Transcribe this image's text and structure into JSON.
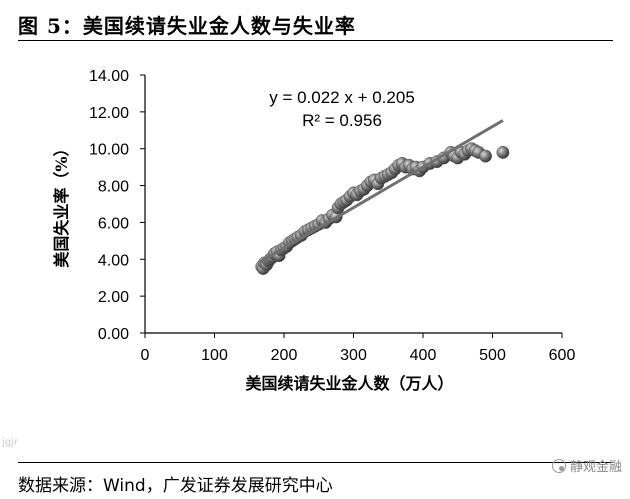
{
  "header": {
    "title": "图 5：美国续请失业金人数与失业率"
  },
  "footer": {
    "source": "数据来源：Wind，广发证券发展研究中心"
  },
  "watermark": {
    "text": "静观金融",
    "icon": "wechat-icon",
    "left_text": "jgjr"
  },
  "chart_data": {
    "type": "scatter",
    "title": "",
    "xlabel": "美国续请失业金人数（万人）",
    "ylabel": "美国失业率（%）",
    "xlim": [
      0,
      600
    ],
    "ylim": [
      0,
      14
    ],
    "x_ticks": [
      "0",
      "100",
      "200",
      "300",
      "400",
      "500",
      "600"
    ],
    "y_ticks": [
      "0.00",
      "2.00",
      "4.00",
      "6.00",
      "8.00",
      "10.00",
      "12.00",
      "14.00"
    ],
    "grid": false,
    "legend": "none",
    "trendline": {
      "slope": 0.022,
      "intercept": 0.205,
      "x_range": [
        165,
        515
      ]
    },
    "annotations": [
      "y = 0.022 x + 0.205",
      "R² = 0.956"
    ],
    "point_color": "#777777",
    "trend_color": "#707070",
    "series": [
      {
        "points": [
          [
            168,
            3.6
          ],
          [
            170,
            3.5
          ],
          [
            172,
            3.8
          ],
          [
            175,
            3.7
          ],
          [
            178,
            3.9
          ],
          [
            180,
            4.0
          ],
          [
            183,
            4.1
          ],
          [
            186,
            4.3
          ],
          [
            190,
            4.4
          ],
          [
            193,
            4.2
          ],
          [
            196,
            4.5
          ],
          [
            200,
            4.6
          ],
          [
            204,
            4.7
          ],
          [
            208,
            4.9
          ],
          [
            212,
            5.0
          ],
          [
            216,
            5.1
          ],
          [
            220,
            5.2
          ],
          [
            225,
            5.3
          ],
          [
            230,
            5.5
          ],
          [
            235,
            5.6
          ],
          [
            240,
            5.7
          ],
          [
            245,
            5.8
          ],
          [
            250,
            5.9
          ],
          [
            255,
            6.1
          ],
          [
            260,
            6.0
          ],
          [
            265,
            6.2
          ],
          [
            270,
            6.4
          ],
          [
            275,
            6.3
          ],
          [
            278,
            6.8
          ],
          [
            282,
            7.0
          ],
          [
            286,
            7.1
          ],
          [
            290,
            7.2
          ],
          [
            295,
            7.4
          ],
          [
            300,
            7.6
          ],
          [
            305,
            7.5
          ],
          [
            310,
            7.7
          ],
          [
            315,
            7.8
          ],
          [
            320,
            8.0
          ],
          [
            325,
            8.2
          ],
          [
            330,
            8.3
          ],
          [
            335,
            8.1
          ],
          [
            340,
            8.4
          ],
          [
            345,
            8.5
          ],
          [
            350,
            8.6
          ],
          [
            355,
            8.7
          ],
          [
            360,
            8.9
          ],
          [
            365,
            9.1
          ],
          [
            370,
            9.2
          ],
          [
            375,
            9.0
          ],
          [
            380,
            9.1
          ],
          [
            385,
            8.9
          ],
          [
            390,
            9.0
          ],
          [
            395,
            8.8
          ],
          [
            400,
            9.0
          ],
          [
            410,
            9.2
          ],
          [
            420,
            9.3
          ],
          [
            430,
            9.5
          ],
          [
            440,
            9.8
          ],
          [
            445,
            9.6
          ],
          [
            450,
            9.5
          ],
          [
            455,
            9.8
          ],
          [
            460,
            9.7
          ],
          [
            465,
            9.9
          ],
          [
            470,
            10.0
          ],
          [
            475,
            9.9
          ],
          [
            480,
            9.8
          ],
          [
            490,
            9.6
          ],
          [
            515,
            9.8
          ]
        ]
      }
    ]
  }
}
